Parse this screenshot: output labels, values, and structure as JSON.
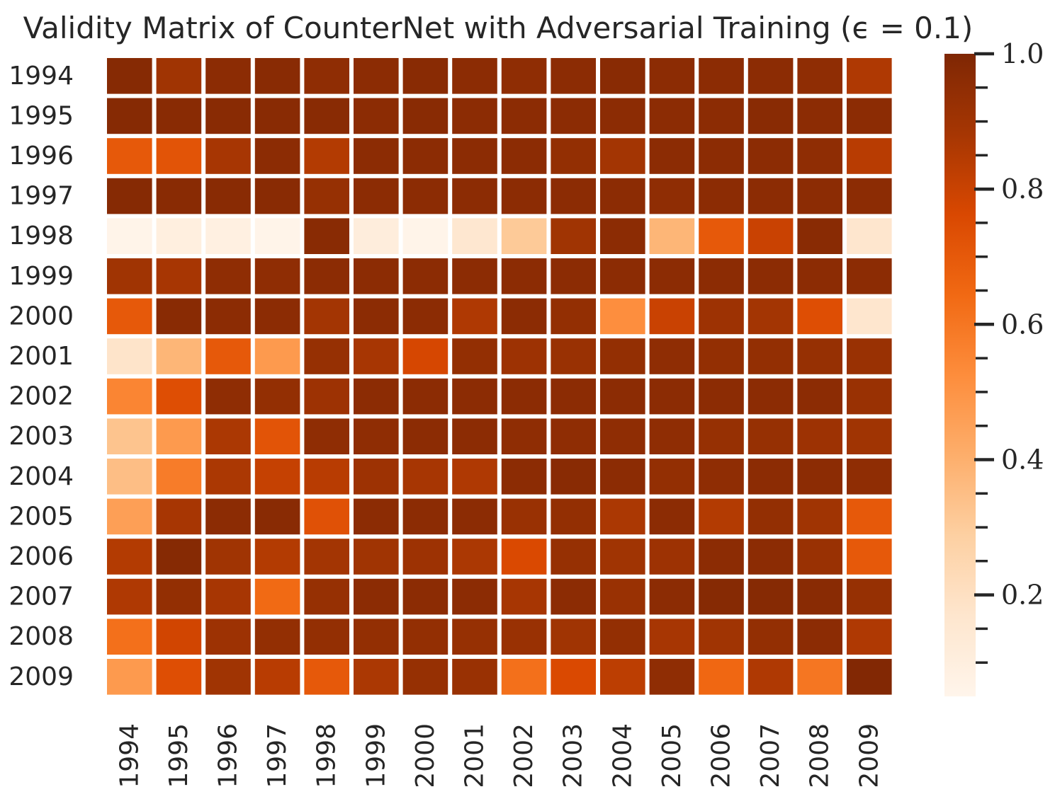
{
  "chart_data": {
    "type": "heatmap",
    "title": "Validity Matrix of CounterNet with Adversarial Training (ϵ = 0.1)",
    "xlabel": "",
    "ylabel": "",
    "x_categories": [
      "1994",
      "1995",
      "1996",
      "1997",
      "1998",
      "1999",
      "2000",
      "2001",
      "2002",
      "2003",
      "2004",
      "2005",
      "2006",
      "2007",
      "2008",
      "2009"
    ],
    "y_categories": [
      "1994",
      "1995",
      "1996",
      "1997",
      "1998",
      "1999",
      "2000",
      "2001",
      "2002",
      "2003",
      "2004",
      "2005",
      "2006",
      "2007",
      "2008",
      "2009"
    ],
    "values": [
      [
        0.98,
        0.9,
        0.96,
        0.97,
        0.95,
        0.96,
        0.97,
        0.96,
        0.95,
        0.96,
        0.97,
        0.96,
        0.96,
        0.96,
        0.95,
        0.86
      ],
      [
        0.98,
        0.97,
        0.97,
        0.97,
        0.97,
        0.96,
        0.97,
        0.96,
        0.96,
        0.96,
        0.96,
        0.96,
        0.96,
        0.97,
        0.96,
        0.96
      ],
      [
        0.7,
        0.72,
        0.88,
        0.96,
        0.85,
        0.96,
        0.96,
        0.96,
        0.96,
        0.94,
        0.89,
        0.96,
        0.96,
        0.96,
        0.95,
        0.84
      ],
      [
        0.98,
        0.97,
        0.97,
        0.97,
        0.93,
        0.96,
        0.96,
        0.96,
        0.96,
        0.96,
        0.96,
        0.95,
        0.96,
        0.96,
        0.96,
        0.96
      ],
      [
        0.06,
        0.1,
        0.09,
        0.06,
        0.97,
        0.11,
        0.06,
        0.16,
        0.31,
        0.9,
        0.96,
        0.38,
        0.7,
        0.8,
        0.97,
        0.17
      ],
      [
        0.9,
        0.88,
        0.95,
        0.95,
        0.96,
        0.96,
        0.96,
        0.96,
        0.96,
        0.96,
        0.96,
        0.96,
        0.96,
        0.96,
        0.96,
        0.96
      ],
      [
        0.7,
        0.97,
        0.96,
        0.96,
        0.89,
        0.96,
        0.96,
        0.86,
        0.96,
        0.94,
        0.52,
        0.8,
        0.91,
        0.89,
        0.74,
        0.17
      ],
      [
        0.18,
        0.38,
        0.7,
        0.48,
        0.93,
        0.88,
        0.77,
        0.94,
        0.91,
        0.92,
        0.94,
        0.95,
        0.94,
        0.94,
        0.93,
        0.92
      ],
      [
        0.55,
        0.74,
        0.95,
        0.94,
        0.91,
        0.96,
        0.96,
        0.96,
        0.96,
        0.96,
        0.96,
        0.96,
        0.96,
        0.96,
        0.96,
        0.92
      ],
      [
        0.33,
        0.48,
        0.87,
        0.72,
        0.95,
        0.95,
        0.96,
        0.96,
        0.95,
        0.95,
        0.95,
        0.95,
        0.93,
        0.93,
        0.91,
        0.9
      ],
      [
        0.35,
        0.58,
        0.87,
        0.81,
        0.84,
        0.91,
        0.88,
        0.86,
        0.96,
        0.97,
        0.96,
        0.94,
        0.95,
        0.96,
        0.96,
        0.95
      ],
      [
        0.46,
        0.88,
        0.96,
        0.97,
        0.73,
        0.96,
        0.96,
        0.96,
        0.92,
        0.94,
        0.87,
        0.96,
        0.85,
        0.94,
        0.9,
        0.7
      ],
      [
        0.85,
        0.98,
        0.9,
        0.85,
        0.89,
        0.9,
        0.91,
        0.87,
        0.76,
        0.93,
        0.9,
        0.91,
        0.96,
        0.96,
        0.92,
        0.7
      ],
      [
        0.86,
        0.94,
        0.88,
        0.64,
        0.93,
        0.96,
        0.96,
        0.96,
        0.88,
        0.96,
        0.92,
        0.96,
        0.98,
        0.98,
        0.97,
        0.93
      ],
      [
        0.62,
        0.78,
        0.91,
        0.94,
        0.94,
        0.94,
        0.94,
        0.93,
        0.92,
        0.9,
        0.94,
        0.88,
        0.9,
        0.94,
        0.96,
        0.86
      ],
      [
        0.48,
        0.74,
        0.9,
        0.84,
        0.7,
        0.87,
        0.93,
        0.92,
        0.62,
        0.76,
        0.83,
        0.95,
        0.65,
        0.86,
        0.6,
        0.99
      ]
    ],
    "colormap": "Oranges",
    "colorbar": {
      "vmin": 0.05,
      "vmax": 1.0,
      "major_ticks": [
        0.2,
        0.4,
        0.6,
        0.8,
        1.0
      ],
      "major_tick_labels": [
        "0.2",
        "0.4",
        "0.6",
        "0.8",
        "1.0"
      ],
      "minor_ticks": [
        0.1,
        0.15,
        0.25,
        0.3,
        0.35,
        0.45,
        0.5,
        0.55,
        0.65,
        0.7,
        0.75,
        0.85,
        0.9,
        0.95
      ],
      "placement": "right"
    },
    "grid": false,
    "cell_separator_color": "#ffffff"
  }
}
